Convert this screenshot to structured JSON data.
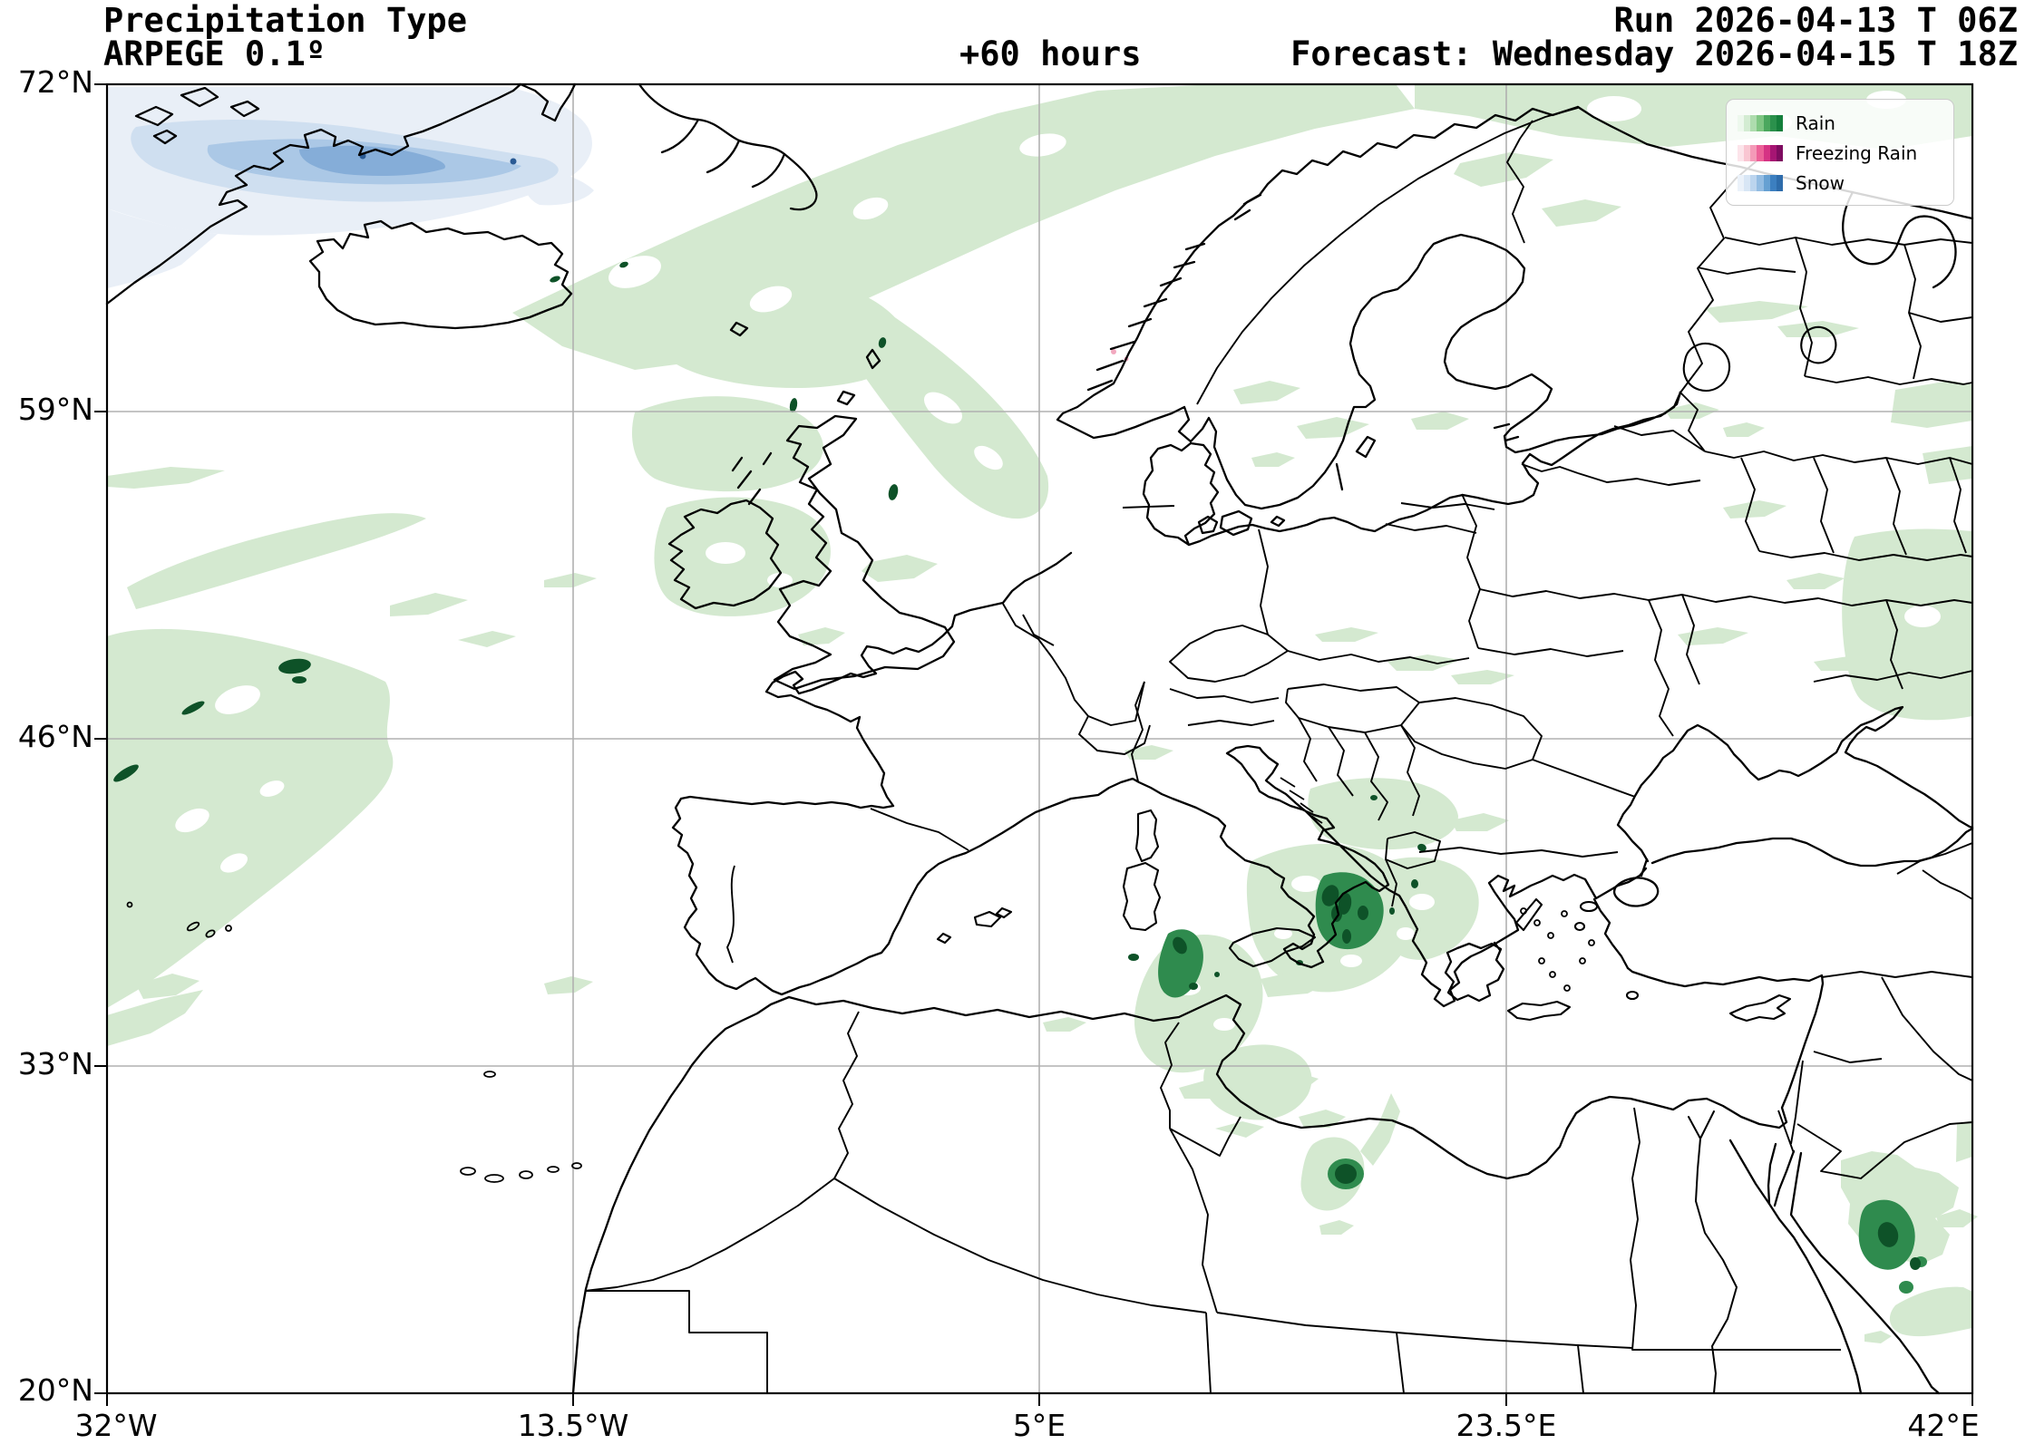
{
  "header": {
    "title": "Precipitation Type",
    "model": "ARPEGE 0.1º",
    "lead_time": "+60 hours",
    "run": "Run 2026-04-13 T 06Z",
    "valid": "Forecast: Wednesday 2026-04-15 T 18Z"
  },
  "axes": {
    "lat_ticks": [
      "72°N",
      "59°N",
      "46°N",
      "33°N",
      "20°N"
    ],
    "lon_ticks": [
      "32°W",
      "13.5°W",
      "5°E",
      "23.5°E",
      "42°E"
    ],
    "lat_range_deg": [
      20,
      72
    ],
    "lon_range_deg": [
      -32,
      42
    ]
  },
  "legend": {
    "items": [
      {
        "label": "Rain",
        "colors": [
          "#edf8ed",
          "#d3ecd2",
          "#aedcae",
          "#7fc683",
          "#4ba75e",
          "#2b914c",
          "#157f3c"
        ]
      },
      {
        "label": "Freezing Rain",
        "colors": [
          "#fce4ea",
          "#f9c6d2",
          "#f49ab8",
          "#ec6198",
          "#d63384",
          "#a61573",
          "#7e0c60"
        ]
      },
      {
        "label": "Snow",
        "colors": [
          "#ebf2fa",
          "#d8e6f5",
          "#bcd5ee",
          "#93bce2",
          "#66a0d2",
          "#3c7fc0",
          "#2e6cab"
        ]
      }
    ]
  },
  "map": {
    "colors": {
      "rain_light": "#d4e9d0",
      "rain_mid": "#2f8b4e",
      "rain_dark": "#0e5228",
      "snow_light": "#e9eff7",
      "snow_mid": "#cfdff0",
      "snow_strong": "#abc8e6",
      "snow_core": "#85add8",
      "snow_max": "#2a5a94",
      "freezing_rain": "#f2a8bf",
      "grid": "#b0b0b0",
      "coast": "#000000"
    }
  }
}
